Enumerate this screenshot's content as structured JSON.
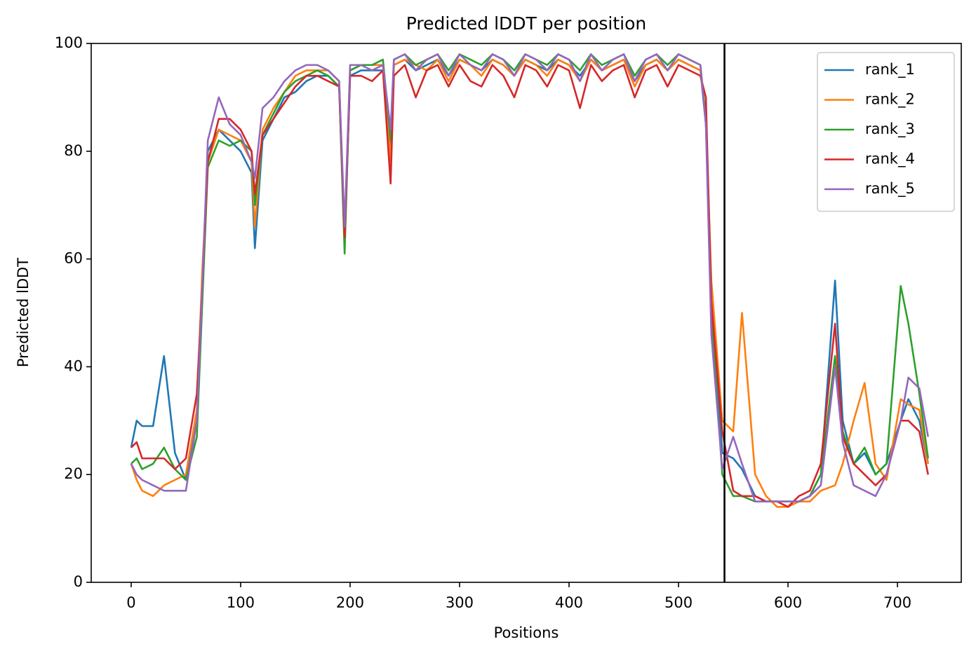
{
  "chart_data": {
    "type": "line",
    "title": "Predicted lDDT per position",
    "xlabel": "Positions",
    "ylabel": "Predicted lDDT",
    "xlim": [
      -36.5,
      758.3
    ],
    "ylim": [
      0,
      100
    ],
    "xticks": [
      0,
      100,
      200,
      300,
      400,
      500,
      600,
      700
    ],
    "yticks": [
      0,
      20,
      40,
      60,
      80,
      100
    ],
    "legend": "upper right",
    "vlines": [
      542
    ],
    "vline_color": "#000000",
    "x": [
      0,
      5,
      10,
      20,
      30,
      40,
      50,
      60,
      65,
      70,
      80,
      90,
      100,
      110,
      113,
      120,
      130,
      140,
      150,
      160,
      170,
      180,
      190,
      195,
      200,
      210,
      220,
      230,
      237,
      240,
      250,
      260,
      270,
      280,
      290,
      300,
      310,
      320,
      330,
      340,
      350,
      360,
      370,
      380,
      390,
      400,
      410,
      420,
      430,
      440,
      450,
      460,
      470,
      480,
      490,
      500,
      510,
      520,
      525,
      530,
      540,
      550,
      558,
      570,
      580,
      590,
      600,
      610,
      620,
      630,
      643,
      650,
      660,
      670,
      680,
      690,
      703,
      710,
      720,
      728
    ],
    "series": [
      {
        "name": "rank_1",
        "color": "#1f77b4",
        "values": [
          25,
          30,
          29,
          29,
          42,
          24,
          19,
          30,
          55,
          80,
          84,
          82,
          80,
          76,
          62,
          82,
          86,
          90,
          91,
          93,
          94,
          94,
          92,
          63,
          94,
          95,
          95,
          95,
          80,
          96,
          97,
          95,
          96,
          97,
          94,
          97,
          96,
          95,
          97,
          96,
          94,
          97,
          96,
          95,
          97,
          96,
          94,
          97,
          95,
          96,
          97,
          93,
          96,
          97,
          95,
          97,
          96,
          95,
          85,
          55,
          24,
          23,
          21,
          16,
          15,
          15,
          15,
          15,
          16,
          20,
          56,
          30,
          22,
          24,
          20,
          22,
          30,
          34,
          30,
          22
        ]
      },
      {
        "name": "rank_2",
        "color": "#ff7f0e",
        "values": [
          22,
          19,
          17,
          16,
          18,
          19,
          20,
          32,
          58,
          78,
          84,
          83,
          82,
          78,
          66,
          84,
          88,
          91,
          94,
          95,
          95,
          95,
          93,
          64,
          95,
          96,
          96,
          96,
          78,
          96,
          97,
          96,
          95,
          97,
          93,
          97,
          96,
          94,
          97,
          96,
          94,
          97,
          96,
          94,
          97,
          96,
          93,
          97,
          95,
          96,
          97,
          92,
          96,
          97,
          95,
          97,
          96,
          95,
          86,
          56,
          30,
          28,
          50,
          20,
          16,
          14,
          14,
          15,
          15,
          17,
          18,
          22,
          30,
          37,
          22,
          19,
          34,
          33,
          32,
          22
        ]
      },
      {
        "name": "rank_3",
        "color": "#2ca02c",
        "values": [
          22,
          23,
          21,
          22,
          25,
          21,
          19,
          27,
          52,
          77,
          82,
          81,
          82,
          80,
          70,
          83,
          87,
          91,
          93,
          94,
          95,
          94,
          92,
          61,
          95,
          96,
          96,
          97,
          82,
          97,
          98,
          96,
          97,
          98,
          95,
          98,
          97,
          96,
          98,
          97,
          95,
          98,
          97,
          96,
          98,
          97,
          95,
          98,
          96,
          97,
          98,
          94,
          97,
          98,
          96,
          98,
          97,
          96,
          86,
          50,
          20,
          16,
          16,
          15,
          15,
          15,
          15,
          15,
          16,
          20,
          42,
          28,
          22,
          25,
          20,
          22,
          55,
          48,
          35,
          23
        ]
      },
      {
        "name": "rank_4",
        "color": "#d62728",
        "values": [
          25,
          26,
          23,
          23,
          23,
          21,
          23,
          35,
          55,
          78,
          86,
          86,
          84,
          80,
          72,
          83,
          86,
          89,
          92,
          94,
          94,
          93,
          92,
          64,
          94,
          94,
          93,
          95,
          74,
          94,
          96,
          90,
          95,
          96,
          92,
          96,
          93,
          92,
          96,
          94,
          90,
          96,
          95,
          92,
          96,
          95,
          88,
          96,
          93,
          95,
          96,
          90,
          95,
          96,
          92,
          96,
          95,
          94,
          90,
          52,
          28,
          17,
          16,
          16,
          15,
          15,
          14,
          16,
          17,
          22,
          48,
          27,
          22,
          20,
          18,
          20,
          30,
          30,
          28,
          20
        ]
      },
      {
        "name": "rank_5",
        "color": "#9467bd",
        "values": [
          22,
          20,
          19,
          18,
          17,
          17,
          17,
          30,
          55,
          82,
          90,
          85,
          83,
          78,
          75,
          88,
          90,
          93,
          95,
          96,
          96,
          95,
          93,
          66,
          96,
          96,
          95,
          96,
          84,
          97,
          98,
          95,
          97,
          98,
          94,
          98,
          96,
          95,
          98,
          97,
          94,
          98,
          97,
          95,
          98,
          97,
          93,
          98,
          95,
          97,
          98,
          93,
          97,
          98,
          95,
          98,
          97,
          96,
          85,
          46,
          21,
          27,
          22,
          15,
          15,
          15,
          15,
          15,
          16,
          18,
          40,
          26,
          18,
          17,
          16,
          20,
          30,
          38,
          36,
          27
        ]
      }
    ]
  }
}
